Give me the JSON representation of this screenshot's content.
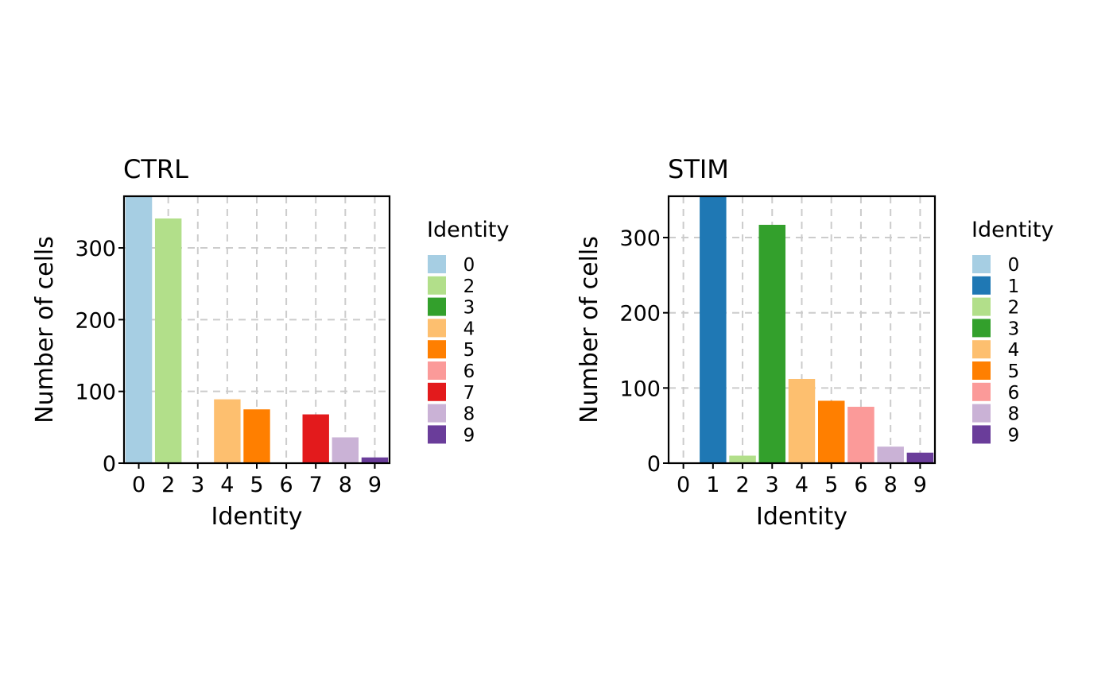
{
  "chart_data": [
    {
      "type": "bar",
      "title": "CTRL",
      "xlabel": "Identity",
      "ylabel": "Number of cells",
      "categories": [
        "0",
        "2",
        "3",
        "4",
        "5",
        "6",
        "7",
        "8",
        "9"
      ],
      "values": [
        372,
        341,
        0,
        89,
        75,
        0,
        68,
        36,
        8
      ],
      "ylim": [
        0,
        372
      ],
      "yticks": [
        0,
        100,
        200,
        300
      ],
      "grid": true,
      "legend": {
        "title": "Identity",
        "position": "right",
        "entries": [
          "0",
          "2",
          "3",
          "4",
          "5",
          "6",
          "7",
          "8",
          "9"
        ]
      },
      "colors": [
        "#A6CEE3",
        "#B2DF8A",
        "#33A02C",
        "#FDBF6F",
        "#FF7F00",
        "#FB9A99",
        "#E31A1C",
        "#CAB2D6",
        "#6A3D9A"
      ]
    },
    {
      "type": "bar",
      "title": "STIM",
      "xlabel": "Identity",
      "ylabel": "Number of cells",
      "categories": [
        "0",
        "1",
        "2",
        "3",
        "4",
        "5",
        "6",
        "8",
        "9"
      ],
      "values": [
        0,
        355,
        10,
        317,
        112,
        83,
        75,
        22,
        14
      ],
      "ylim": [
        0,
        355
      ],
      "yticks": [
        0,
        100,
        200,
        300
      ],
      "grid": true,
      "legend": {
        "title": "Identity",
        "position": "right",
        "entries": [
          "0",
          "1",
          "2",
          "3",
          "4",
          "5",
          "6",
          "8",
          "9"
        ]
      },
      "colors": [
        "#A6CEE3",
        "#1F78B4",
        "#B2DF8A",
        "#33A02C",
        "#FDBF6F",
        "#FF7F00",
        "#FB9A99",
        "#CAB2D6",
        "#6A3D9A"
      ]
    }
  ]
}
